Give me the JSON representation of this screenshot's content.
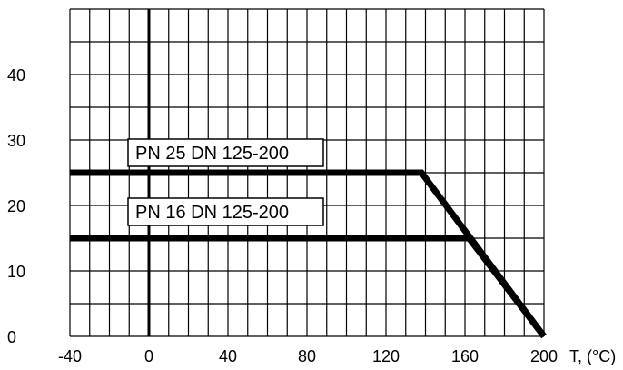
{
  "chart_data": {
    "type": "line",
    "title": "",
    "xlabel": "T, (°C)",
    "ylabel": "",
    "xlim": [
      -40,
      200
    ],
    "ylim": [
      0,
      50
    ],
    "grid": true,
    "x_ticks": [
      "-40",
      "0",
      "40",
      "80",
      "120",
      "160",
      "200"
    ],
    "y_ticks": [
      "0",
      "10",
      "20",
      "30",
      "40"
    ],
    "series": [
      {
        "name": "PN 25 DN 125-200",
        "x": [
          -40,
          138,
          200
        ],
        "y": [
          25,
          25,
          0
        ],
        "color": "#000000"
      },
      {
        "name": "PN 16 DN 125-200",
        "x": [
          -40,
          162,
          200
        ],
        "y": [
          15,
          15,
          0
        ],
        "color": "#000000"
      }
    ]
  }
}
